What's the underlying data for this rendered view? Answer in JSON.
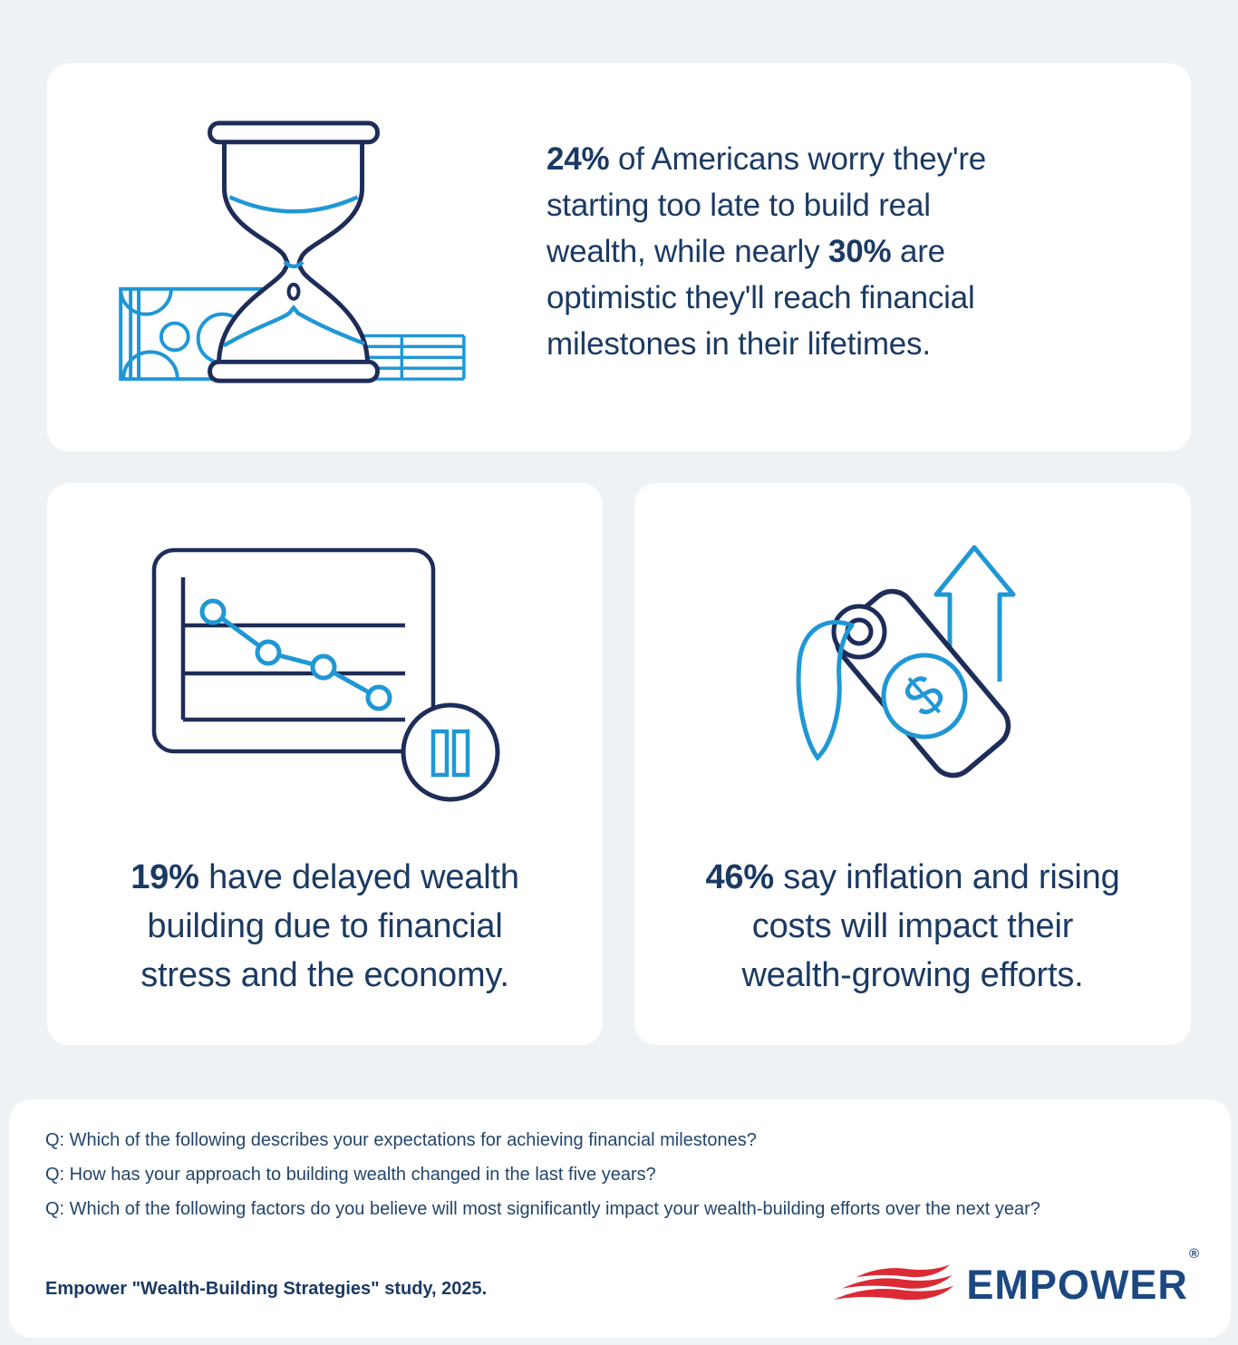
{
  "colors": {
    "page_bg": "#eff2f4",
    "card_bg": "#ffffff",
    "text_navy": "#1b3a63",
    "icon_navy": "#1e2c58",
    "icon_blue": "#2097d5",
    "logo_navy": "#1b4880",
    "logo_red": "#dc2a35"
  },
  "hero": {
    "icon": "hourglass-with-money-icon",
    "lines": [
      [
        {
          "t": "24%",
          "b": true
        },
        {
          "t": " of Americans worry they're",
          "b": false
        }
      ],
      [
        {
          "t": "starting too late to build real",
          "b": false
        }
      ],
      [
        {
          "t": "wealth, while nearly ",
          "b": false
        },
        {
          "t": "30%",
          "b": true
        },
        {
          "t": " are",
          "b": false
        }
      ],
      [
        {
          "t": "optimistic they'll reach financial",
          "b": false
        }
      ],
      [
        {
          "t": "milestones in their lifetimes.",
          "b": false
        }
      ]
    ]
  },
  "stat_cards": [
    {
      "icon": "declining-line-chart-pause-icon",
      "lines": [
        [
          {
            "t": "19%",
            "b": true
          },
          {
            "t": " have delayed wealth",
            "b": false
          }
        ],
        [
          {
            "t": "building due to financial",
            "b": false
          }
        ],
        [
          {
            "t": "stress and the economy.",
            "b": false
          }
        ]
      ]
    },
    {
      "icon": "price-tag-rising-arrow-icon",
      "lines": [
        [
          {
            "t": "46%",
            "b": true
          },
          {
            "t": " say inflation and rising",
            "b": false
          }
        ],
        [
          {
            "t": "costs will impact their",
            "b": false
          }
        ],
        [
          {
            "t": "wealth-growing efforts.",
            "b": false
          }
        ]
      ]
    }
  ],
  "questions": [
    "Q: Which of the following describes your expectations for achieving financial milestones?",
    "Q: How has your approach to building wealth changed in the last five years?",
    "Q: Which of the following factors do you believe will most significantly impact your wealth-building efforts over the next year?"
  ],
  "source": "Empower \"Wealth-Building Strategies\" study, 2025.",
  "logo": {
    "wordmark": "EMPOWER",
    "registered": "®"
  }
}
